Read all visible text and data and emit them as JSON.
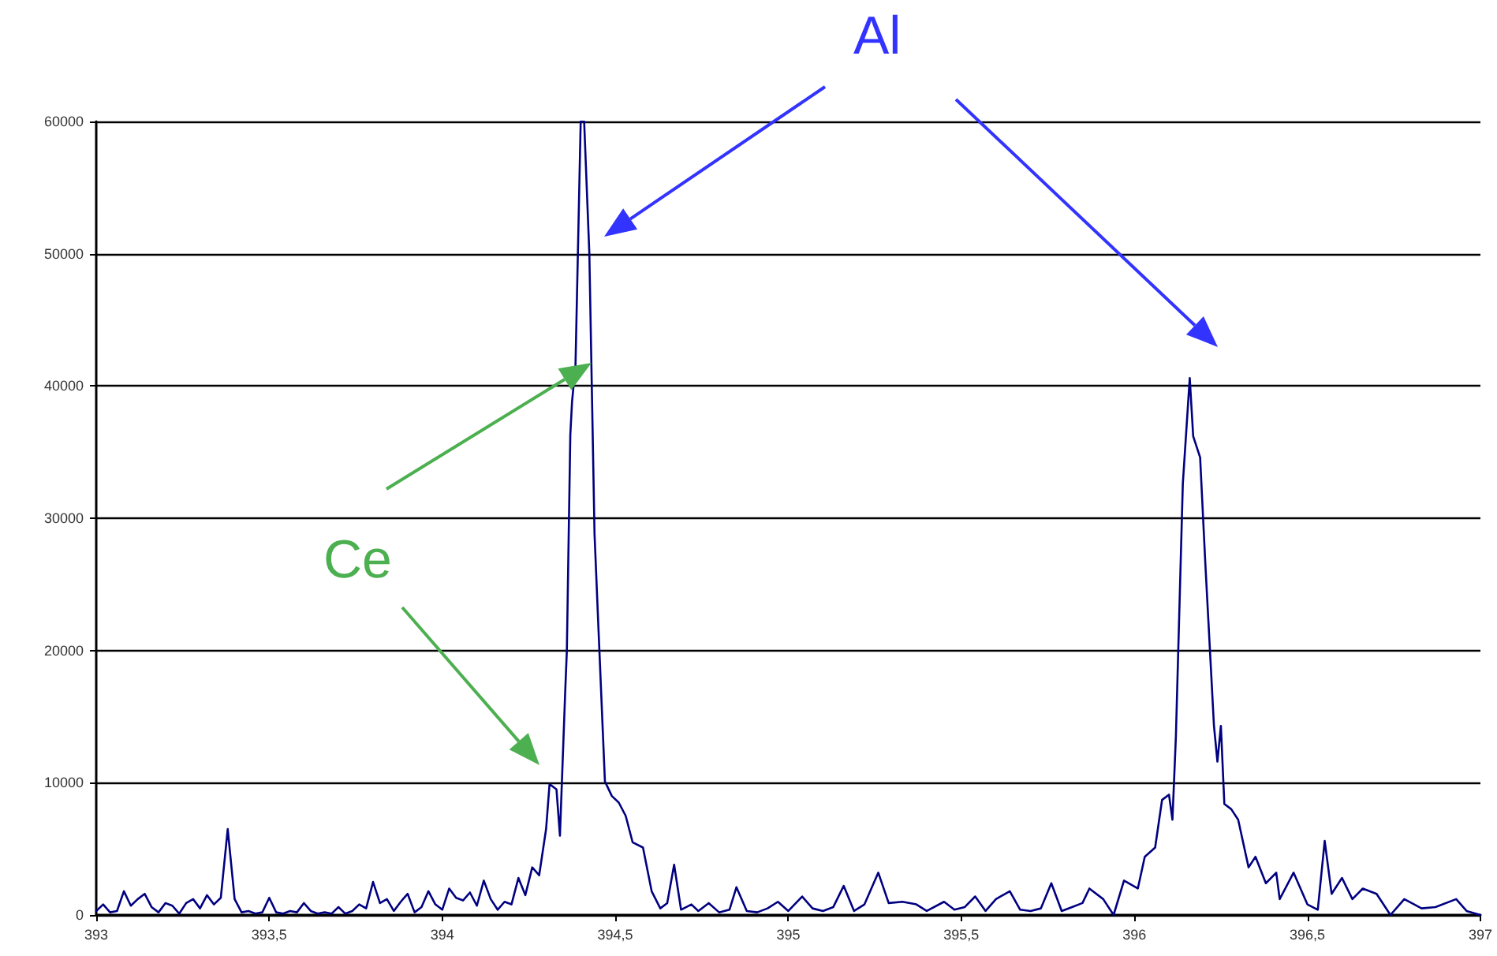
{
  "chart_data": {
    "type": "line",
    "x": [
      393.0,
      393.02,
      393.04,
      393.06,
      393.08,
      393.1,
      393.12,
      393.14,
      393.16,
      393.18,
      393.2,
      393.22,
      393.24,
      393.26,
      393.28,
      393.3,
      393.32,
      393.34,
      393.36,
      393.38,
      393.4,
      393.42,
      393.44,
      393.46,
      393.48,
      393.5,
      393.52,
      393.54,
      393.56,
      393.58,
      393.6,
      393.62,
      393.64,
      393.66,
      393.68,
      393.7,
      393.72,
      393.74,
      393.76,
      393.78,
      393.8,
      393.82,
      393.84,
      393.86,
      393.88,
      393.9,
      393.92,
      393.94,
      393.96,
      393.98,
      394.0,
      394.02,
      394.04,
      394.06,
      394.08,
      394.1,
      394.12,
      394.14,
      394.16,
      394.18,
      394.2,
      394.22,
      394.24,
      394.26,
      394.28,
      394.3,
      394.31,
      394.33,
      394.34,
      394.355,
      394.36,
      394.37,
      394.375,
      394.385,
      394.4,
      394.41,
      394.425,
      394.44,
      394.45,
      394.47,
      394.49,
      394.51,
      394.53,
      394.55,
      394.58,
      394.605,
      394.63,
      394.65,
      394.67,
      394.69,
      394.72,
      394.74,
      394.77,
      394.8,
      394.83,
      394.85,
      394.88,
      394.91,
      394.94,
      394.97,
      395.0,
      395.04,
      395.07,
      395.1,
      395.13,
      395.16,
      395.19,
      395.22,
      395.26,
      395.29,
      395.33,
      395.37,
      395.4,
      395.45,
      395.48,
      395.51,
      395.54,
      395.57,
      395.6,
      395.64,
      395.67,
      395.7,
      395.73,
      395.76,
      395.79,
      395.82,
      395.85,
      395.87,
      395.91,
      395.94,
      395.97,
      396.01,
      396.03,
      396.06,
      396.08,
      396.1,
      396.11,
      396.12,
      396.14,
      396.16,
      396.17,
      396.19,
      396.205,
      396.23,
      396.24,
      396.25,
      396.26,
      396.28,
      396.3,
      396.33,
      396.35,
      396.38,
      396.41,
      396.42,
      396.46,
      396.5,
      396.53,
      396.55,
      396.57,
      396.6,
      396.63,
      396.66,
      396.7,
      396.74,
      396.78,
      396.83,
      396.87,
      396.93,
      396.96,
      397.0
    ],
    "values": [
      300,
      800,
      200,
      300,
      1800,
      700,
      1200,
      1600,
      600,
      200,
      900,
      700,
      100,
      900,
      1200,
      500,
      1500,
      800,
      1300,
      6500,
      1200,
      200,
      300,
      100,
      200,
      1300,
      200,
      100,
      300,
      200,
      900,
      300,
      100,
      200,
      100,
      600,
      100,
      300,
      800,
      500,
      2500,
      900,
      1200,
      300,
      1000,
      1600,
      200,
      600,
      1800,
      800,
      400,
      2000,
      1300,
      1100,
      1700,
      700,
      2600,
      1200,
      400,
      1000,
      800,
      2800,
      1500,
      3600,
      3000,
      6500,
      9900,
      9500,
      6000,
      16700,
      20000,
      36300,
      38800,
      41600,
      60000,
      60000,
      50000,
      28800,
      22500,
      10100,
      9000,
      8500,
      7500,
      5500,
      5100,
      1800,
      500,
      900,
      3800,
      400,
      800,
      300,
      900,
      200,
      400,
      2100,
      300,
      200,
      500,
      1000,
      300,
      1400,
      500,
      300,
      600,
      2200,
      300,
      800,
      3200,
      900,
      1000,
      800,
      300,
      1000,
      400,
      600,
      1400,
      300,
      1200,
      1800,
      400,
      300,
      500,
      2400,
      300,
      600,
      900,
      2000,
      1200,
      0,
      2600,
      2000,
      4400,
      5100,
      8700,
      9100,
      7200,
      13500,
      32600,
      40600,
      36200,
      34600,
      26600,
      14300,
      11600,
      14300,
      8400,
      8000,
      7200,
      3600,
      4400,
      2400,
      3200,
      1200,
      3200,
      800,
      400,
      5600,
      1600,
      2800,
      1200,
      2000,
      1600,
      0,
      1200,
      500,
      600,
      1200,
      300,
      0
    ],
    "color": "#000080",
    "xlim": [
      393,
      397
    ],
    "xticks": [
      393,
      {
        "value": 393.5,
        "label": "393,5"
      },
      394,
      {
        "value": 394.5,
        "label": "394,5"
      },
      395,
      {
        "value": 395.5,
        "label": "395,5"
      },
      396,
      {
        "value": 396.5,
        "label": "396,5"
      },
      397
    ],
    "ylim": [
      0,
      60000
    ],
    "yticks": [
      0,
      10000,
      20000,
      30000,
      40000,
      50000,
      60000
    ],
    "grid": "y",
    "marker": "none",
    "line_style": "solid",
    "annotations": [
      "Al",
      "Ce"
    ]
  }
}
